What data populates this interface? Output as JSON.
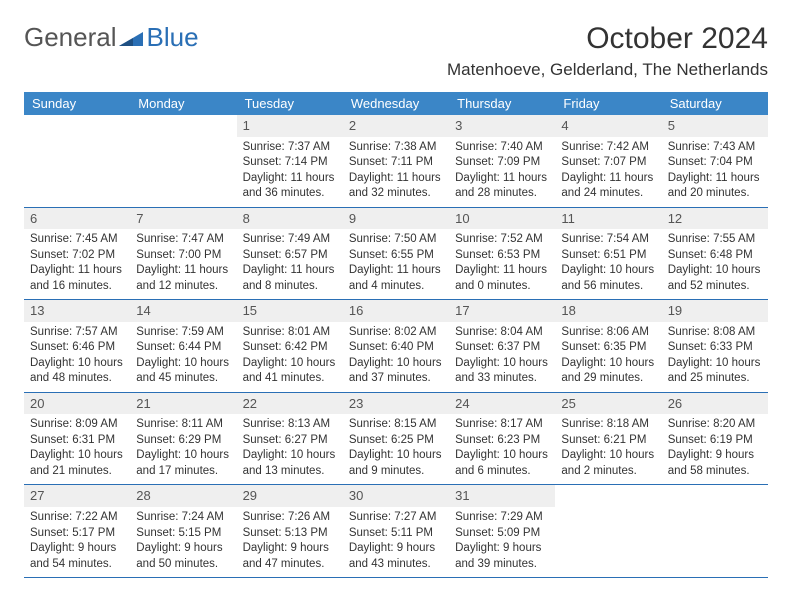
{
  "brand": {
    "word1": "General",
    "word2": "Blue",
    "accent_color": "#2a6fb5",
    "neutral_color": "#555555"
  },
  "title": "October 2024",
  "location": "Matenhoeve, Gelderland, The Netherlands",
  "header_bg": "#3b86c7",
  "header_fg": "#ffffff",
  "daynum_bg": "#efefef",
  "rule_color": "#2a6fb5",
  "body_fontsize": 11.5,
  "weekdays": [
    "Sunday",
    "Monday",
    "Tuesday",
    "Wednesday",
    "Thursday",
    "Friday",
    "Saturday"
  ],
  "weeks": [
    [
      {
        "n": "",
        "sunrise": "",
        "sunset": "",
        "daylight": ""
      },
      {
        "n": "",
        "sunrise": "",
        "sunset": "",
        "daylight": ""
      },
      {
        "n": "1",
        "sunrise": "Sunrise: 7:37 AM",
        "sunset": "Sunset: 7:14 PM",
        "daylight": "Daylight: 11 hours and 36 minutes."
      },
      {
        "n": "2",
        "sunrise": "Sunrise: 7:38 AM",
        "sunset": "Sunset: 7:11 PM",
        "daylight": "Daylight: 11 hours and 32 minutes."
      },
      {
        "n": "3",
        "sunrise": "Sunrise: 7:40 AM",
        "sunset": "Sunset: 7:09 PM",
        "daylight": "Daylight: 11 hours and 28 minutes."
      },
      {
        "n": "4",
        "sunrise": "Sunrise: 7:42 AM",
        "sunset": "Sunset: 7:07 PM",
        "daylight": "Daylight: 11 hours and 24 minutes."
      },
      {
        "n": "5",
        "sunrise": "Sunrise: 7:43 AM",
        "sunset": "Sunset: 7:04 PM",
        "daylight": "Daylight: 11 hours and 20 minutes."
      }
    ],
    [
      {
        "n": "6",
        "sunrise": "Sunrise: 7:45 AM",
        "sunset": "Sunset: 7:02 PM",
        "daylight": "Daylight: 11 hours and 16 minutes."
      },
      {
        "n": "7",
        "sunrise": "Sunrise: 7:47 AM",
        "sunset": "Sunset: 7:00 PM",
        "daylight": "Daylight: 11 hours and 12 minutes."
      },
      {
        "n": "8",
        "sunrise": "Sunrise: 7:49 AM",
        "sunset": "Sunset: 6:57 PM",
        "daylight": "Daylight: 11 hours and 8 minutes."
      },
      {
        "n": "9",
        "sunrise": "Sunrise: 7:50 AM",
        "sunset": "Sunset: 6:55 PM",
        "daylight": "Daylight: 11 hours and 4 minutes."
      },
      {
        "n": "10",
        "sunrise": "Sunrise: 7:52 AM",
        "sunset": "Sunset: 6:53 PM",
        "daylight": "Daylight: 11 hours and 0 minutes."
      },
      {
        "n": "11",
        "sunrise": "Sunrise: 7:54 AM",
        "sunset": "Sunset: 6:51 PM",
        "daylight": "Daylight: 10 hours and 56 minutes."
      },
      {
        "n": "12",
        "sunrise": "Sunrise: 7:55 AM",
        "sunset": "Sunset: 6:48 PM",
        "daylight": "Daylight: 10 hours and 52 minutes."
      }
    ],
    [
      {
        "n": "13",
        "sunrise": "Sunrise: 7:57 AM",
        "sunset": "Sunset: 6:46 PM",
        "daylight": "Daylight: 10 hours and 48 minutes."
      },
      {
        "n": "14",
        "sunrise": "Sunrise: 7:59 AM",
        "sunset": "Sunset: 6:44 PM",
        "daylight": "Daylight: 10 hours and 45 minutes."
      },
      {
        "n": "15",
        "sunrise": "Sunrise: 8:01 AM",
        "sunset": "Sunset: 6:42 PM",
        "daylight": "Daylight: 10 hours and 41 minutes."
      },
      {
        "n": "16",
        "sunrise": "Sunrise: 8:02 AM",
        "sunset": "Sunset: 6:40 PM",
        "daylight": "Daylight: 10 hours and 37 minutes."
      },
      {
        "n": "17",
        "sunrise": "Sunrise: 8:04 AM",
        "sunset": "Sunset: 6:37 PM",
        "daylight": "Daylight: 10 hours and 33 minutes."
      },
      {
        "n": "18",
        "sunrise": "Sunrise: 8:06 AM",
        "sunset": "Sunset: 6:35 PM",
        "daylight": "Daylight: 10 hours and 29 minutes."
      },
      {
        "n": "19",
        "sunrise": "Sunrise: 8:08 AM",
        "sunset": "Sunset: 6:33 PM",
        "daylight": "Daylight: 10 hours and 25 minutes."
      }
    ],
    [
      {
        "n": "20",
        "sunrise": "Sunrise: 8:09 AM",
        "sunset": "Sunset: 6:31 PM",
        "daylight": "Daylight: 10 hours and 21 minutes."
      },
      {
        "n": "21",
        "sunrise": "Sunrise: 8:11 AM",
        "sunset": "Sunset: 6:29 PM",
        "daylight": "Daylight: 10 hours and 17 minutes."
      },
      {
        "n": "22",
        "sunrise": "Sunrise: 8:13 AM",
        "sunset": "Sunset: 6:27 PM",
        "daylight": "Daylight: 10 hours and 13 minutes."
      },
      {
        "n": "23",
        "sunrise": "Sunrise: 8:15 AM",
        "sunset": "Sunset: 6:25 PM",
        "daylight": "Daylight: 10 hours and 9 minutes."
      },
      {
        "n": "24",
        "sunrise": "Sunrise: 8:17 AM",
        "sunset": "Sunset: 6:23 PM",
        "daylight": "Daylight: 10 hours and 6 minutes."
      },
      {
        "n": "25",
        "sunrise": "Sunrise: 8:18 AM",
        "sunset": "Sunset: 6:21 PM",
        "daylight": "Daylight: 10 hours and 2 minutes."
      },
      {
        "n": "26",
        "sunrise": "Sunrise: 8:20 AM",
        "sunset": "Sunset: 6:19 PM",
        "daylight": "Daylight: 9 hours and 58 minutes."
      }
    ],
    [
      {
        "n": "27",
        "sunrise": "Sunrise: 7:22 AM",
        "sunset": "Sunset: 5:17 PM",
        "daylight": "Daylight: 9 hours and 54 minutes."
      },
      {
        "n": "28",
        "sunrise": "Sunrise: 7:24 AM",
        "sunset": "Sunset: 5:15 PM",
        "daylight": "Daylight: 9 hours and 50 minutes."
      },
      {
        "n": "29",
        "sunrise": "Sunrise: 7:26 AM",
        "sunset": "Sunset: 5:13 PM",
        "daylight": "Daylight: 9 hours and 47 minutes."
      },
      {
        "n": "30",
        "sunrise": "Sunrise: 7:27 AM",
        "sunset": "Sunset: 5:11 PM",
        "daylight": "Daylight: 9 hours and 43 minutes."
      },
      {
        "n": "31",
        "sunrise": "Sunrise: 7:29 AM",
        "sunset": "Sunset: 5:09 PM",
        "daylight": "Daylight: 9 hours and 39 minutes."
      },
      {
        "n": "",
        "sunrise": "",
        "sunset": "",
        "daylight": ""
      },
      {
        "n": "",
        "sunrise": "",
        "sunset": "",
        "daylight": ""
      }
    ]
  ]
}
